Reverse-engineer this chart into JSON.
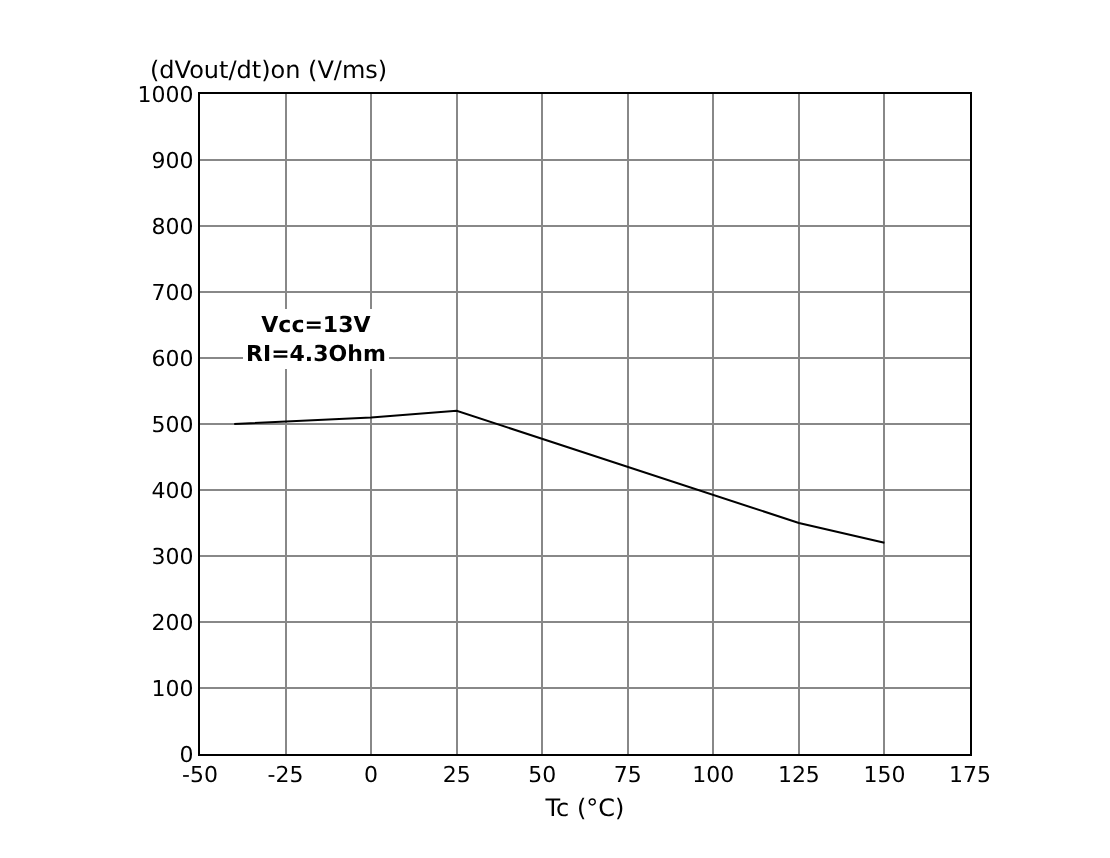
{
  "chart_data": {
    "type": "line",
    "ylabel": "(dVout/dt)on (V/ms)",
    "xlabel": "Tc (°C)",
    "x": [
      -40,
      0,
      25,
      125,
      150
    ],
    "series": [
      {
        "color": "#000000",
        "values": [
          500,
          510,
          520,
          350,
          320
        ]
      }
    ],
    "xlim": [
      -50,
      175
    ],
    "xticks": [
      -50,
      -25,
      0,
      25,
      50,
      75,
      100,
      125,
      150,
      175
    ],
    "ylim": [
      0,
      1000
    ],
    "yticks": [
      0,
      100,
      200,
      300,
      400,
      500,
      600,
      700,
      800,
      900,
      1000
    ],
    "grid": true,
    "marker": "none",
    "line_style": "solid",
    "annotations": [
      "Vcc=13V",
      "RI=4.3Ohm"
    ]
  }
}
